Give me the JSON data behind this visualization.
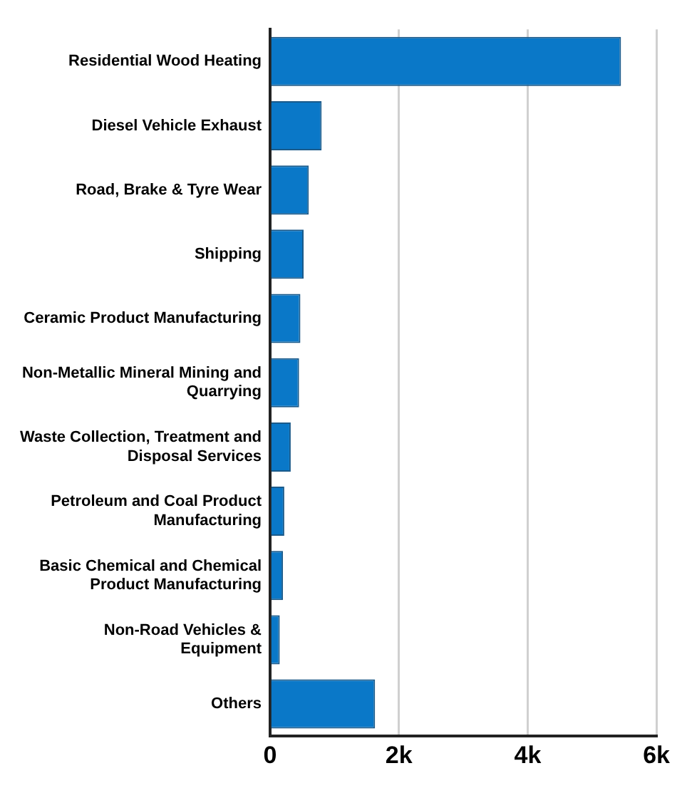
{
  "chart_data": {
    "type": "bar",
    "orientation": "horizontal",
    "categories": [
      "Residential Wood Heating",
      "Diesel Vehicle Exhaust",
      "Road, Brake & Tyre Wear",
      "Shipping",
      "Ceramic Product Manufacturing",
      "Non-Metallic Mineral Mining and Quarrying",
      "Waste Collection, Treatment and Disposal Services",
      "Petroleum and Coal Product Manufacturing",
      "Basic Chemical and Chemical Product Manufacturing",
      "Non-Road Vehicles & Equipment",
      "Others"
    ],
    "values": [
      5450,
      800,
      600,
      520,
      470,
      450,
      320,
      220,
      200,
      150,
      1630
    ],
    "color": "#0a78c8",
    "xlim": [
      0,
      6000
    ],
    "xticks": [
      {
        "value": 0,
        "label": "0"
      },
      {
        "value": 2000,
        "label": "2k"
      },
      {
        "value": 4000,
        "label": "4k"
      },
      {
        "value": 6000,
        "label": "6k"
      }
    ],
    "grid": "x",
    "legend": false
  }
}
